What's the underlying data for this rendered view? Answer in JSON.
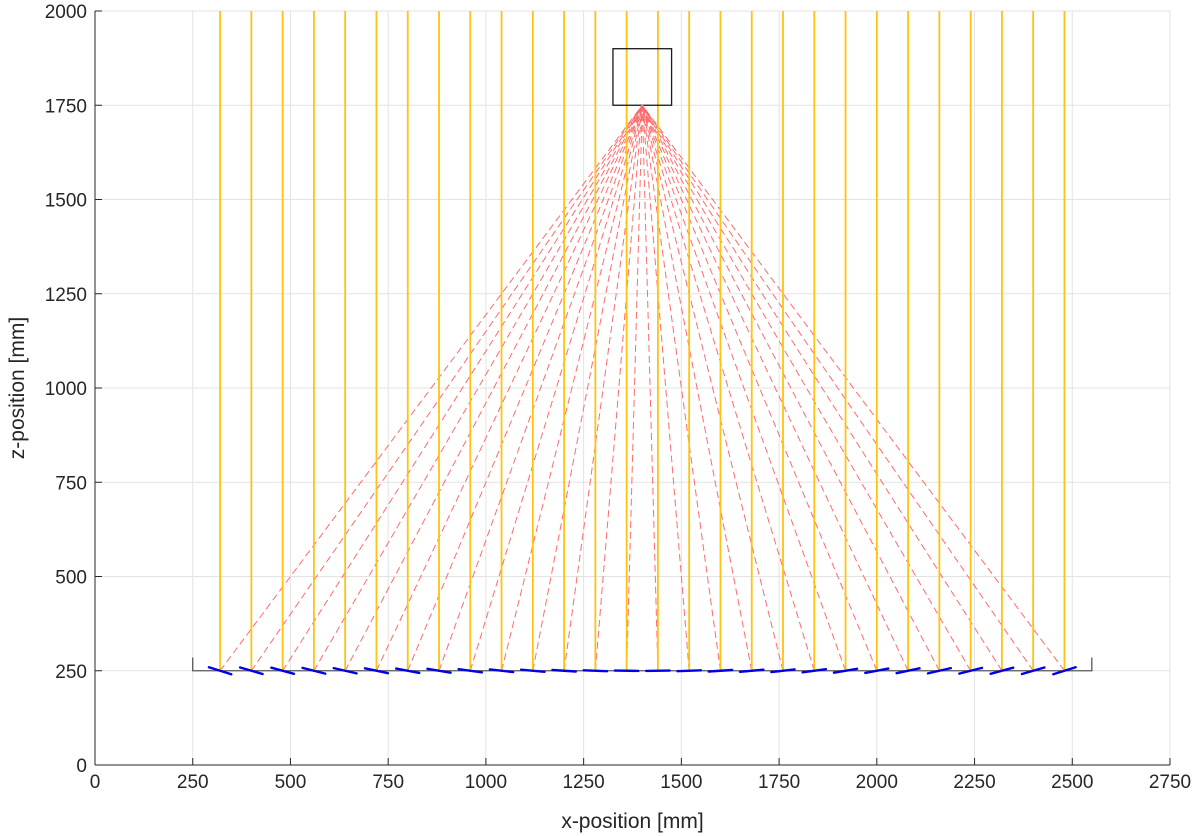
{
  "chart_data": {
    "type": "line",
    "title": "",
    "xlabel": "x-position [mm]",
    "ylabel": "z-position [mm]",
    "xlim": [
      0,
      2750
    ],
    "ylim": [
      0,
      2000
    ],
    "xticks": [
      0,
      250,
      500,
      750,
      1000,
      1250,
      1500,
      1750,
      2000,
      2250,
      2500,
      2750
    ],
    "yticks": [
      0,
      250,
      500,
      750,
      1000,
      1250,
      1500,
      1750,
      2000
    ],
    "grid": true,
    "legend": "none",
    "colors": {
      "incident_rays": "#FFC20E",
      "reflected_rays": "#FF6B6B",
      "mirrors": "#0000E6",
      "receiver": "#1A1A1A",
      "field_outline": "#595959",
      "grid": "#E3E3E3",
      "axes": "#262626"
    },
    "receiver": {
      "x_min": 1325,
      "x_max": 1475,
      "z_min": 1750,
      "z_max": 1900
    },
    "aim_point": [
      1400,
      1750
    ],
    "field_outline": {
      "x_min": 250,
      "x_max": 2550,
      "z": 250,
      "edge_top": 285
    },
    "mirror_width": 60,
    "mirrors_z": 250,
    "incident_ray_top": 2000,
    "mirror_x": [
      320,
      400,
      480,
      560,
      640,
      720,
      800,
      880,
      960,
      1040,
      1120,
      1200,
      1280,
      1360,
      1440,
      1520,
      1600,
      1680,
      1760,
      1840,
      1920,
      2000,
      2080,
      2160,
      2240,
      2320,
      2400,
      2480
    ]
  }
}
